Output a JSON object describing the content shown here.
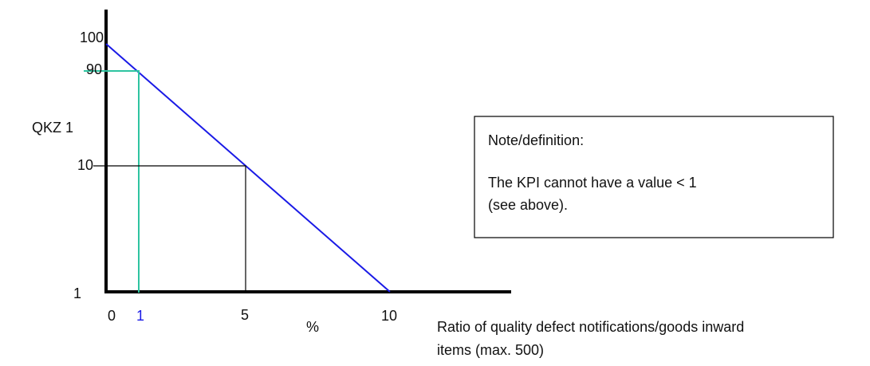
{
  "y_axis": {
    "label": "QKZ 1",
    "ticks": [
      "100",
      "90",
      "10",
      "1"
    ]
  },
  "x_axis": {
    "ticks": [
      "0",
      "1",
      "5",
      "10"
    ],
    "unit": "%",
    "label": [
      "Ratio of quality defect notifications/goods inward",
      "items (max. 500)"
    ]
  },
  "note": {
    "title": "Note/definition:",
    "lines": [
      "The KPI cannot have a value < 1",
      "(see above)."
    ]
  }
}
